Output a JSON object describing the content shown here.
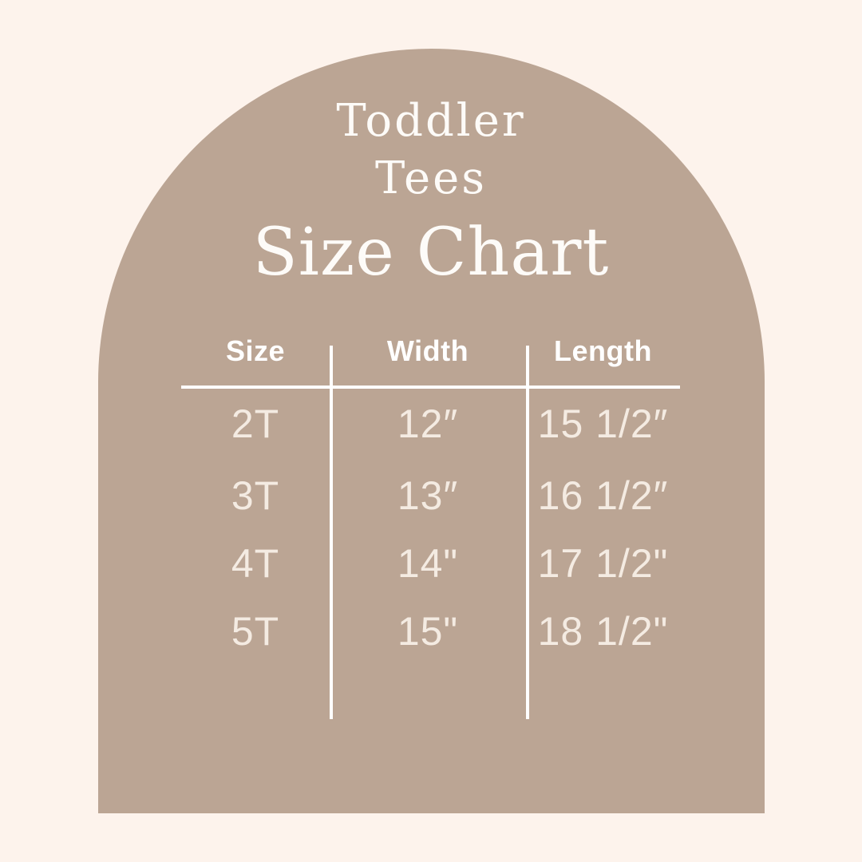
{
  "title": {
    "line1": "Toddler",
    "line2": "Tees",
    "heading": "Size Chart"
  },
  "table": {
    "columns": [
      "Size",
      "Width",
      "Length"
    ],
    "rows": [
      {
        "size": "2T",
        "width": "12″",
        "length": "15 1/2″"
      },
      {
        "size": "3T",
        "width": "13″",
        "length": "16 1/2″"
      },
      {
        "size": "4T",
        "width": "14\"",
        "length": "17 1/2\""
      },
      {
        "size": "5T",
        "width": "15\"",
        "length": "18 1/2\""
      }
    ]
  },
  "chart_data": {
    "type": "table",
    "title": "Toddler Tees Size Chart",
    "columns": [
      "Size",
      "Width",
      "Length"
    ],
    "rows": [
      [
        "2T",
        "12″",
        "15 1/2″"
      ],
      [
        "3T",
        "13″",
        "16 1/2″"
      ],
      [
        "4T",
        "14\"",
        "17 1/2\""
      ],
      [
        "5T",
        "15\"",
        "18 1/2\""
      ]
    ],
    "units": "inches"
  },
  "colors": {
    "background": "#FDF3EC",
    "arch": "#BBA594",
    "title_text": "#FDFBF8",
    "header_text": "#FFFFFF",
    "data_text": "#F4EBE2",
    "rule": "#FFFFFF"
  }
}
